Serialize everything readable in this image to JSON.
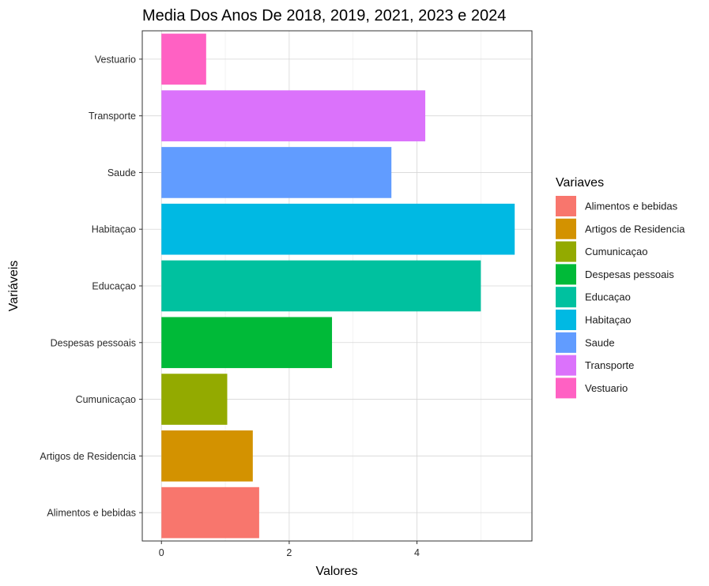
{
  "chart_data": {
    "type": "bar",
    "orientation": "horizontal",
    "title": "Media Dos Anos De  2018, 2019, 2021, 2023 e 2024",
    "xlabel": "Valores",
    "ylabel": "Variáveis",
    "xlim": [
      -0.3,
      5.8
    ],
    "x_ticks": [
      0,
      2,
      4
    ],
    "grid": true,
    "legend_position": "right",
    "legend_title": "Variaves",
    "categories": [
      "Alimentos e bebidas",
      "Artigos de Residencia",
      "Cumunicaçao",
      "Despesas pessoais",
      "Educaçao",
      "Habitaçao",
      "Saude",
      "Transporte",
      "Vestuario"
    ],
    "values": [
      1.53,
      1.43,
      1.03,
      2.67,
      5.0,
      5.53,
      3.6,
      4.13,
      0.7
    ],
    "colors": [
      "#F8766D",
      "#D39200",
      "#93AA00",
      "#00BA38",
      "#00C19F",
      "#00B9E3",
      "#619CFF",
      "#DB72FB",
      "#FF61C3"
    ]
  }
}
